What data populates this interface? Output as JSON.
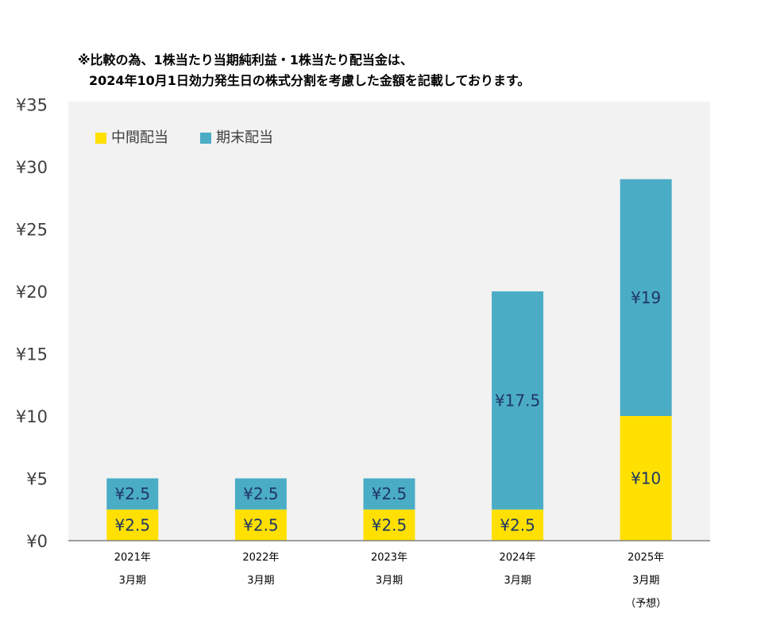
{
  "notes": {
    "line1": "※比較の為、1株当たり当期純利益・1株当たり配当金は、",
    "line2": "2024年10月1日効力発生日の株式分割を考慮した金額を記載しております。"
  },
  "chart_data": {
    "type": "bar",
    "stacked": true,
    "categories": [
      [
        "2021年",
        "3月期"
      ],
      [
        "2022年",
        "3月期"
      ],
      [
        "2023年",
        "3月期"
      ],
      [
        "2024年",
        "3月期"
      ],
      [
        "2025年",
        "3月期",
        "（予想）"
      ]
    ],
    "series": [
      {
        "name": "中間配当",
        "color": "#FFE000",
        "values": [
          2.5,
          2.5,
          2.5,
          2.5,
          10
        ],
        "labels": [
          "¥2.5",
          "¥2.5",
          "¥2.5",
          "¥2.5",
          "¥10"
        ]
      },
      {
        "name": "期末配当",
        "color": "#4BACC6",
        "values": [
          2.5,
          2.5,
          2.5,
          17.5,
          19
        ],
        "labels": [
          "¥2.5",
          "¥2.5",
          "¥2.5",
          "¥17.5",
          "¥19"
        ]
      }
    ],
    "yticks": [
      "¥0",
      "¥5",
      "¥10",
      "¥15",
      "¥20",
      "¥25",
      "¥30",
      "¥35"
    ],
    "ylim": [
      0,
      35
    ],
    "plot_background": "#F2F2F2",
    "legend_position": "top-left",
    "grid": false
  }
}
